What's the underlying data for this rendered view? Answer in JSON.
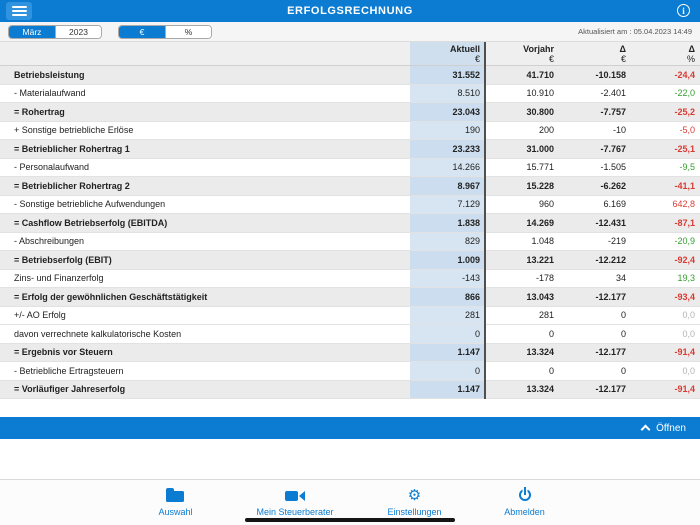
{
  "colors": {
    "accent_blue": "#0b7cd1",
    "aktuell_column_blue": "#d7e5f2",
    "aktuell_column_blue_bold": "#cbddee",
    "bold_row_gray": "#ebebeb",
    "negative_red": "#d93a32",
    "positive_green": "#33a02c",
    "zero_gray": "#b5b5b5"
  },
  "topbar": {
    "title": "ERFOLGSRECHNUNG",
    "menu_icon": "hamburger-menu-icon",
    "info_icon": "info-icon",
    "info_glyph": "i"
  },
  "toolbar": {
    "month": "März",
    "year": "2023",
    "unit_euro": "€",
    "unit_percent": "%",
    "selected_month": "März",
    "selected_unit": "€",
    "updated": "Aktualisiert am : 05.04.2023 14:49"
  },
  "table": {
    "columns": [
      {
        "title": "Aktuell",
        "unit": "€"
      },
      {
        "title": "Vorjahr",
        "unit": "€"
      },
      {
        "title": "Δ",
        "unit": "€"
      },
      {
        "title": "Δ",
        "unit": "%"
      }
    ],
    "rows": [
      {
        "label": "Betriebsleistung",
        "bold": true,
        "aktuell": "31.552",
        "vorjahr": "41.710",
        "delta": "-10.158",
        "delta_pct": "-24,4",
        "trend": "neg"
      },
      {
        "label": "- Materialaufwand",
        "bold": false,
        "aktuell": "8.510",
        "vorjahr": "10.910",
        "delta": "-2.401",
        "delta_pct": "-22,0",
        "trend": "pos"
      },
      {
        "label": "= Rohertrag",
        "bold": true,
        "aktuell": "23.043",
        "vorjahr": "30.800",
        "delta": "-7.757",
        "delta_pct": "-25,2",
        "trend": "neg"
      },
      {
        "label": "+ Sonstige betriebliche Erlöse",
        "bold": false,
        "aktuell": "190",
        "vorjahr": "200",
        "delta": "-10",
        "delta_pct": "-5,0",
        "trend": "neg"
      },
      {
        "label": "= Betrieblicher Rohertrag 1",
        "bold": true,
        "aktuell": "23.233",
        "vorjahr": "31.000",
        "delta": "-7.767",
        "delta_pct": "-25,1",
        "trend": "neg"
      },
      {
        "label": "- Personalaufwand",
        "bold": false,
        "aktuell": "14.266",
        "vorjahr": "15.771",
        "delta": "-1.505",
        "delta_pct": "-9,5",
        "trend": "pos"
      },
      {
        "label": "= Betrieblicher Rohertrag 2",
        "bold": true,
        "aktuell": "8.967",
        "vorjahr": "15.228",
        "delta": "-6.262",
        "delta_pct": "-41,1",
        "trend": "neg"
      },
      {
        "label": "- Sonstige betriebliche Aufwendungen",
        "bold": false,
        "aktuell": "7.129",
        "vorjahr": "960",
        "delta": "6.169",
        "delta_pct": "642,8",
        "trend": "neg"
      },
      {
        "label": "= Cashflow Betriebserfolg (EBITDA)",
        "bold": true,
        "aktuell": "1.838",
        "vorjahr": "14.269",
        "delta": "-12.431",
        "delta_pct": "-87,1",
        "trend": "neg"
      },
      {
        "label": "- Abschreibungen",
        "bold": false,
        "aktuell": "829",
        "vorjahr": "1.048",
        "delta": "-219",
        "delta_pct": "-20,9",
        "trend": "pos"
      },
      {
        "label": "= Betriebserfolg (EBIT)",
        "bold": true,
        "aktuell": "1.009",
        "vorjahr": "13.221",
        "delta": "-12.212",
        "delta_pct": "-92,4",
        "trend": "neg"
      },
      {
        "label": "Zins- und Finanzerfolg",
        "bold": false,
        "aktuell": "-143",
        "vorjahr": "-178",
        "delta": "34",
        "delta_pct": "19,3",
        "trend": "pos"
      },
      {
        "label": "= Erfolg der gewöhnlichen Geschäftstätigkeit",
        "bold": true,
        "aktuell": "866",
        "vorjahr": "13.043",
        "delta": "-12.177",
        "delta_pct": "-93,4",
        "trend": "neg"
      },
      {
        "label": "+/- AO Erfolg",
        "bold": false,
        "aktuell": "281",
        "vorjahr": "281",
        "delta": "0",
        "delta_pct": "0,0",
        "trend": "zero"
      },
      {
        "label": "davon verrechnete kalkulatorische Kosten",
        "bold": false,
        "aktuell": "0",
        "vorjahr": "0",
        "delta": "0",
        "delta_pct": "0,0",
        "trend": "zero"
      },
      {
        "label": "= Ergebnis vor Steuern",
        "bold": true,
        "aktuell": "1.147",
        "vorjahr": "13.324",
        "delta": "-12.177",
        "delta_pct": "-91,4",
        "trend": "neg"
      },
      {
        "label": "- Betriebliche Ertragsteuern",
        "bold": false,
        "aktuell": "0",
        "vorjahr": "0",
        "delta": "0",
        "delta_pct": "0,0",
        "trend": "zero"
      },
      {
        "label": "= Vorläufiger Jahreserfolg",
        "bold": true,
        "aktuell": "1.147",
        "vorjahr": "13.324",
        "delta": "-12.177",
        "delta_pct": "-91,4",
        "trend": "neg"
      }
    ]
  },
  "expander": {
    "label": "Öffnen",
    "chevron_icon": "chevron-up-icon"
  },
  "tabbar": {
    "items": [
      {
        "label": "Auswahl",
        "icon": "folder-icon"
      },
      {
        "label": "Mein Steuerberater",
        "icon": "video-camera-icon"
      },
      {
        "label": "Einstellungen",
        "icon": "gear-icon"
      },
      {
        "label": "Abmelden",
        "icon": "power-icon"
      }
    ]
  }
}
